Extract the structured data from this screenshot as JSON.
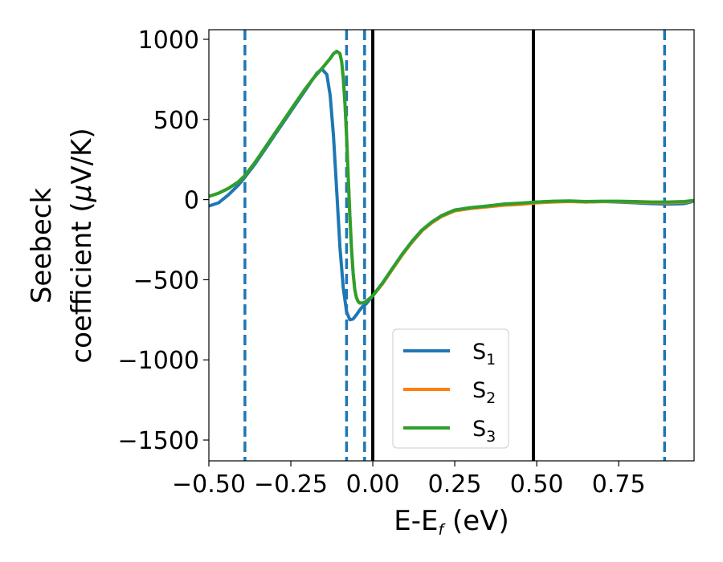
{
  "chart_data": {
    "type": "line",
    "title": "",
    "xlabel": {
      "main": "E-E",
      "sub": "f",
      "tail": " (eV)"
    },
    "ylabel": {
      "line1": "Seebeck",
      "line2_pre": "coefficient  (",
      "line2_mu": "μ",
      "line2_post": "V/K)"
    },
    "xlim": [
      -0.5,
      0.98
    ],
    "ylim": [
      -1630,
      1060
    ],
    "xticks": [
      {
        "value": -0.5,
        "label": "−0.50"
      },
      {
        "value": -0.25,
        "label": "−0.25"
      },
      {
        "value": 0.0,
        "label": "0.00"
      },
      {
        "value": 0.25,
        "label": "0.25"
      },
      {
        "value": 0.5,
        "label": "0.50"
      },
      {
        "value": 0.75,
        "label": "0.75"
      }
    ],
    "yticks": [
      {
        "value": 1000,
        "label": "1000"
      },
      {
        "value": 500,
        "label": "500"
      },
      {
        "value": 0,
        "label": "0"
      },
      {
        "value": -500,
        "label": "−500"
      },
      {
        "value": -1000,
        "label": "−1000"
      },
      {
        "value": -1500,
        "label": "−1500"
      }
    ],
    "grid": false,
    "legend": {
      "position": "lower-center"
    },
    "vlines": [
      {
        "x": -0.39,
        "style": "dashed",
        "color": "#1f77b4"
      },
      {
        "x": -0.08,
        "style": "dashed",
        "color": "#1f77b4"
      },
      {
        "x": -0.025,
        "style": "dashed",
        "color": "#1f77b4"
      },
      {
        "x": 0.0,
        "style": "solid",
        "color": "#000000"
      },
      {
        "x": 0.49,
        "style": "solid",
        "color": "#000000"
      },
      {
        "x": 0.89,
        "style": "dashed",
        "color": "#1f77b4"
      }
    ],
    "series": [
      {
        "name": "S",
        "sub": "1",
        "color": "#1f77b4",
        "points": [
          [
            -0.5,
            -40
          ],
          [
            -0.47,
            -20
          ],
          [
            -0.44,
            30
          ],
          [
            -0.41,
            90
          ],
          [
            -0.39,
            140
          ],
          [
            -0.36,
            220
          ],
          [
            -0.33,
            310
          ],
          [
            -0.3,
            400
          ],
          [
            -0.27,
            490
          ],
          [
            -0.24,
            580
          ],
          [
            -0.21,
            670
          ],
          [
            -0.19,
            730
          ],
          [
            -0.17,
            790
          ],
          [
            -0.155,
            815
          ],
          [
            -0.14,
            780
          ],
          [
            -0.13,
            650
          ],
          [
            -0.12,
            400
          ],
          [
            -0.11,
            50
          ],
          [
            -0.1,
            -300
          ],
          [
            -0.09,
            -550
          ],
          [
            -0.08,
            -700
          ],
          [
            -0.07,
            -750
          ],
          [
            -0.06,
            -745
          ],
          [
            -0.05,
            -720
          ],
          [
            -0.04,
            -690
          ],
          [
            -0.03,
            -665
          ],
          [
            -0.02,
            -650
          ],
          [
            0.0,
            -600
          ],
          [
            0.03,
            -520
          ],
          [
            0.06,
            -430
          ],
          [
            0.09,
            -340
          ],
          [
            0.12,
            -260
          ],
          [
            0.15,
            -190
          ],
          [
            0.18,
            -140
          ],
          [
            0.21,
            -100
          ],
          [
            0.25,
            -65
          ],
          [
            0.3,
            -50
          ],
          [
            0.35,
            -40
          ],
          [
            0.4,
            -28
          ],
          [
            0.45,
            -25
          ],
          [
            0.5,
            -15
          ],
          [
            0.55,
            -12
          ],
          [
            0.6,
            -10
          ],
          [
            0.65,
            -15
          ],
          [
            0.7,
            -12
          ],
          [
            0.75,
            -15
          ],
          [
            0.8,
            -20
          ],
          [
            0.85,
            -25
          ],
          [
            0.9,
            -28
          ],
          [
            0.95,
            -25
          ],
          [
            0.98,
            -10
          ]
        ]
      },
      {
        "name": "S",
        "sub": "2",
        "color": "#ff7f0e",
        "points": [
          [
            -0.5,
            20
          ],
          [
            -0.47,
            40
          ],
          [
            -0.44,
            70
          ],
          [
            -0.41,
            110
          ],
          [
            -0.39,
            150
          ],
          [
            -0.36,
            230
          ],
          [
            -0.33,
            320
          ],
          [
            -0.3,
            410
          ],
          [
            -0.27,
            500
          ],
          [
            -0.24,
            590
          ],
          [
            -0.21,
            680
          ],
          [
            -0.18,
            760
          ],
          [
            -0.15,
            830
          ],
          [
            -0.13,
            880
          ],
          [
            -0.12,
            910
          ],
          [
            -0.11,
            925
          ],
          [
            -0.1,
            910
          ],
          [
            -0.095,
            860
          ],
          [
            -0.09,
            760
          ],
          [
            -0.085,
            600
          ],
          [
            -0.08,
            400
          ],
          [
            -0.075,
            150
          ],
          [
            -0.07,
            -100
          ],
          [
            -0.065,
            -300
          ],
          [
            -0.06,
            -460
          ],
          [
            -0.055,
            -560
          ],
          [
            -0.05,
            -610
          ],
          [
            -0.045,
            -635
          ],
          [
            -0.04,
            -645
          ],
          [
            -0.03,
            -645
          ],
          [
            -0.02,
            -635
          ],
          [
            0.0,
            -600
          ],
          [
            0.03,
            -525
          ],
          [
            0.06,
            -435
          ],
          [
            0.09,
            -345
          ],
          [
            0.12,
            -265
          ],
          [
            0.15,
            -195
          ],
          [
            0.18,
            -145
          ],
          [
            0.21,
            -105
          ],
          [
            0.25,
            -70
          ],
          [
            0.3,
            -55
          ],
          [
            0.35,
            -45
          ],
          [
            0.4,
            -35
          ],
          [
            0.45,
            -30
          ],
          [
            0.5,
            -20
          ],
          [
            0.55,
            -15
          ],
          [
            0.6,
            -12
          ],
          [
            0.65,
            -15
          ],
          [
            0.7,
            -12
          ],
          [
            0.75,
            -12
          ],
          [
            0.8,
            -15
          ],
          [
            0.85,
            -18
          ],
          [
            0.9,
            -20
          ],
          [
            0.95,
            -15
          ],
          [
            0.98,
            -8
          ]
        ]
      },
      {
        "name": "S",
        "sub": "3",
        "color": "#2ca02c",
        "points": [
          [
            -0.5,
            20
          ],
          [
            -0.47,
            40
          ],
          [
            -0.44,
            70
          ],
          [
            -0.41,
            110
          ],
          [
            -0.39,
            150
          ],
          [
            -0.36,
            230
          ],
          [
            -0.33,
            320
          ],
          [
            -0.3,
            410
          ],
          [
            -0.27,
            500
          ],
          [
            -0.24,
            590
          ],
          [
            -0.21,
            680
          ],
          [
            -0.18,
            760
          ],
          [
            -0.15,
            830
          ],
          [
            -0.13,
            880
          ],
          [
            -0.12,
            910
          ],
          [
            -0.11,
            925
          ],
          [
            -0.1,
            910
          ],
          [
            -0.095,
            860
          ],
          [
            -0.09,
            760
          ],
          [
            -0.085,
            600
          ],
          [
            -0.08,
            400
          ],
          [
            -0.075,
            150
          ],
          [
            -0.07,
            -100
          ],
          [
            -0.065,
            -300
          ],
          [
            -0.06,
            -460
          ],
          [
            -0.055,
            -560
          ],
          [
            -0.05,
            -610
          ],
          [
            -0.045,
            -635
          ],
          [
            -0.04,
            -645
          ],
          [
            -0.03,
            -645
          ],
          [
            -0.02,
            -635
          ],
          [
            0.0,
            -600
          ],
          [
            0.03,
            -520
          ],
          [
            0.06,
            -430
          ],
          [
            0.09,
            -340
          ],
          [
            0.12,
            -260
          ],
          [
            0.15,
            -190
          ],
          [
            0.18,
            -140
          ],
          [
            0.21,
            -100
          ],
          [
            0.25,
            -65
          ],
          [
            0.3,
            -50
          ],
          [
            0.35,
            -40
          ],
          [
            0.4,
            -28
          ],
          [
            0.45,
            -22
          ],
          [
            0.5,
            -15
          ],
          [
            0.55,
            -10
          ],
          [
            0.6,
            -8
          ],
          [
            0.65,
            -12
          ],
          [
            0.7,
            -10
          ],
          [
            0.75,
            -10
          ],
          [
            0.8,
            -12
          ],
          [
            0.85,
            -15
          ],
          [
            0.9,
            -15
          ],
          [
            0.95,
            -12
          ],
          [
            0.98,
            -5
          ]
        ]
      }
    ]
  }
}
